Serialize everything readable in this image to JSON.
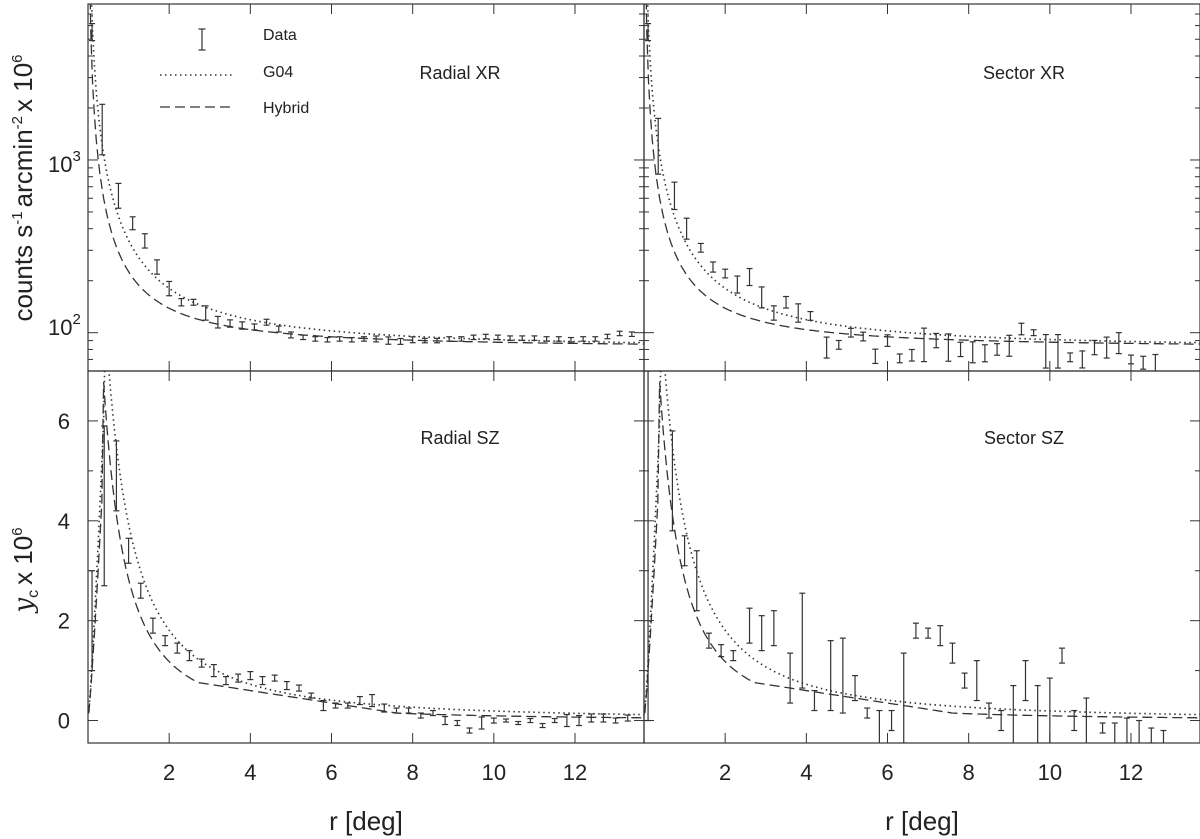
{
  "chart_data": [
    {
      "panel": "top-left",
      "type": "scatter",
      "title": "Radial XR",
      "xlabel": "",
      "ylabel": "counts s-1 arcmin-2 x 10^6",
      "xlim": [
        0,
        13.7
      ],
      "ylim": [
        60,
        8000
      ],
      "yscale": "log",
      "ytick_labels": {
        "100": "10",
        "1000": "10"
      },
      "ytick_exponents": {
        "100": "2",
        "1000": "3"
      },
      "data_points": [
        [
          0.1,
          5500,
          0.12
        ],
        [
          0.35,
          1500,
          0.4
        ],
        [
          0.75,
          620,
          0.18
        ],
        [
          1.1,
          430,
          0.09
        ],
        [
          1.4,
          340,
          0.1
        ],
        [
          1.7,
          240,
          0.1
        ],
        [
          2.0,
          180,
          0.1
        ],
        [
          2.3,
          150,
          0.05
        ],
        [
          2.6,
          150,
          0.04
        ],
        [
          2.9,
          130,
          0.1
        ],
        [
          3.2,
          115,
          0.08
        ],
        [
          3.5,
          113,
          0.05
        ],
        [
          3.8,
          110,
          0.05
        ],
        [
          4.1,
          108,
          0.04
        ],
        [
          4.4,
          115,
          0.04
        ],
        [
          4.7,
          105,
          0.04
        ],
        [
          5.0,
          97,
          0.04
        ],
        [
          5.3,
          94,
          0.03
        ],
        [
          5.6,
          92,
          0.03
        ],
        [
          5.9,
          91,
          0.03
        ],
        [
          6.2,
          92,
          0.03
        ],
        [
          6.5,
          91,
          0.03
        ],
        [
          6.8,
          92,
          0.03
        ],
        [
          7.1,
          92,
          0.04
        ],
        [
          7.4,
          90,
          0.05
        ],
        [
          7.7,
          89,
          0.04
        ],
        [
          8.0,
          91,
          0.04
        ],
        [
          8.3,
          90,
          0.03
        ],
        [
          8.6,
          90,
          0.03
        ],
        [
          8.9,
          92,
          0.03
        ],
        [
          9.2,
          92,
          0.03
        ],
        [
          9.5,
          94,
          0.03
        ],
        [
          9.8,
          95,
          0.03
        ],
        [
          10.1,
          94,
          0.03
        ],
        [
          10.4,
          93,
          0.03
        ],
        [
          10.7,
          93,
          0.03
        ],
        [
          11.0,
          93,
          0.03
        ],
        [
          11.3,
          92,
          0.03
        ],
        [
          11.6,
          92,
          0.03
        ],
        [
          11.9,
          91,
          0.03
        ],
        [
          12.2,
          92,
          0.03
        ],
        [
          12.5,
          92,
          0.03
        ],
        [
          12.8,
          95,
          0.03
        ],
        [
          13.1,
          99,
          0.03
        ],
        [
          13.4,
          98,
          0.03
        ]
      ],
      "series": [
        {
          "name": "G04",
          "style": "dotted",
          "params": {
            "base": 83,
            "amp": 600,
            "rc": 0.55,
            "p": 1.4
          }
        },
        {
          "name": "Hybrid",
          "style": "dashed",
          "params": {
            "base": 83,
            "amp": 420,
            "rc": 0.45,
            "p": 1.35
          }
        }
      ]
    },
    {
      "panel": "top-right",
      "type": "scatter",
      "title": "Sector XR",
      "xlabel": "",
      "ylabel": "",
      "xlim": [
        0,
        13.7
      ],
      "ylim": [
        60,
        8000
      ],
      "yscale": "log",
      "data_points": [
        [
          0.1,
          5500,
          0.12
        ],
        [
          0.35,
          1200,
          0.45
        ],
        [
          0.75,
          620,
          0.2
        ],
        [
          1.05,
          400,
          0.15
        ],
        [
          1.4,
          310,
          0.06
        ],
        [
          1.7,
          240,
          0.07
        ],
        [
          2.0,
          220,
          0.06
        ],
        [
          2.3,
          190,
          0.12
        ],
        [
          2.6,
          210,
          0.12
        ],
        [
          2.9,
          160,
          0.15
        ],
        [
          3.2,
          130,
          0.1
        ],
        [
          3.5,
          150,
          0.08
        ],
        [
          3.8,
          130,
          0.13
        ],
        [
          4.1,
          125,
          0.06
        ],
        [
          4.5,
          82,
          0.15
        ],
        [
          4.8,
          85,
          0.06
        ],
        [
          5.1,
          100,
          0.06
        ],
        [
          5.4,
          95,
          0.06
        ],
        [
          5.7,
          73,
          0.1
        ],
        [
          6.0,
          90,
          0.08
        ],
        [
          6.3,
          71,
          0.06
        ],
        [
          6.6,
          74,
          0.08
        ],
        [
          6.9,
          85,
          0.25
        ],
        [
          7.2,
          90,
          0.1
        ],
        [
          7.5,
          82,
          0.2
        ],
        [
          7.8,
          80,
          0.1
        ],
        [
          8.1,
          77,
          0.15
        ],
        [
          8.4,
          76,
          0.12
        ],
        [
          8.7,
          80,
          0.08
        ],
        [
          9.0,
          84,
          0.15
        ],
        [
          9.3,
          105,
          0.08
        ],
        [
          9.6,
          100,
          0.04
        ],
        [
          9.9,
          78,
          0.25
        ],
        [
          10.2,
          78,
          0.25
        ],
        [
          10.5,
          72,
          0.06
        ],
        [
          10.8,
          70,
          0.12
        ],
        [
          11.1,
          82,
          0.1
        ],
        [
          11.4,
          82,
          0.15
        ],
        [
          11.7,
          87,
          0.15
        ],
        [
          12.0,
          70,
          0.06
        ],
        [
          12.3,
          67,
          0.09
        ],
        [
          12.6,
          65,
          0.15
        ]
      ],
      "series": [
        {
          "name": "G04",
          "style": "dotted",
          "params": {
            "base": 83,
            "amp": 600,
            "rc": 0.55,
            "p": 1.4
          }
        },
        {
          "name": "Hybrid",
          "style": "dashed",
          "params": {
            "base": 83,
            "amp": 420,
            "rc": 0.45,
            "p": 1.35
          }
        }
      ]
    },
    {
      "panel": "bottom-left",
      "type": "scatter",
      "title": "Radial SZ",
      "xlabel": "r [deg]",
      "ylabel": "y_c x 10^6",
      "xlim": [
        0,
        13.7
      ],
      "ylim": [
        -0.45,
        7.0
      ],
      "yscale": "linear",
      "xticks": [
        2,
        4,
        6,
        8,
        10,
        12
      ],
      "yticks": [
        0,
        2,
        4,
        6
      ],
      "data_points": [
        [
          0.1,
          2.0,
          1.0
        ],
        [
          0.4,
          4.3,
          1.6
        ],
        [
          0.7,
          4.9,
          0.7
        ],
        [
          1.0,
          3.4,
          0.25
        ],
        [
          1.3,
          2.6,
          0.15
        ],
        [
          1.6,
          1.9,
          0.15
        ],
        [
          1.9,
          1.6,
          0.1
        ],
        [
          2.2,
          1.45,
          0.1
        ],
        [
          2.5,
          1.3,
          0.1
        ],
        [
          2.8,
          1.15,
          0.08
        ],
        [
          3.1,
          1.0,
          0.12
        ],
        [
          3.4,
          0.8,
          0.08
        ],
        [
          3.7,
          0.85,
          0.08
        ],
        [
          4.0,
          0.9,
          0.08
        ],
        [
          4.3,
          0.8,
          0.08
        ],
        [
          4.6,
          0.85,
          0.06
        ],
        [
          4.9,
          0.7,
          0.08
        ],
        [
          5.2,
          0.65,
          0.06
        ],
        [
          5.5,
          0.5,
          0.05
        ],
        [
          5.8,
          0.3,
          0.1
        ],
        [
          6.1,
          0.3,
          0.05
        ],
        [
          6.4,
          0.3,
          0.05
        ],
        [
          6.7,
          0.4,
          0.08
        ],
        [
          7.0,
          0.4,
          0.12
        ],
        [
          7.3,
          0.25,
          0.08
        ],
        [
          7.6,
          0.2,
          0.05
        ],
        [
          7.9,
          0.2,
          0.05
        ],
        [
          8.2,
          0.1,
          0.05
        ],
        [
          8.5,
          0.15,
          0.05
        ],
        [
          8.8,
          0.0,
          0.08
        ],
        [
          9.1,
          -0.05,
          0.05
        ],
        [
          9.4,
          -0.2,
          0.05
        ],
        [
          9.7,
          -0.05,
          0.12
        ],
        [
          10.0,
          0.0,
          0.05
        ],
        [
          10.3,
          0.0,
          0.03
        ],
        [
          10.6,
          -0.05,
          0.03
        ],
        [
          10.9,
          0.0,
          0.04
        ],
        [
          11.2,
          -0.1,
          0.04
        ],
        [
          11.5,
          0.0,
          0.04
        ],
        [
          11.8,
          0.0,
          0.12
        ],
        [
          12.1,
          0.0,
          0.1
        ],
        [
          12.4,
          0.05,
          0.08
        ],
        [
          12.7,
          0.05,
          0.08
        ],
        [
          13.0,
          0.0,
          0.05
        ],
        [
          13.3,
          0.05,
          0.06
        ]
      ],
      "series": [
        {
          "name": "G04",
          "style": "dotted",
          "params": {
            "a": 5.7,
            "r0": 1.0,
            "p": 1.6,
            "peak": 0.4,
            "lin": 0.125
          }
        },
        {
          "name": "Hybrid",
          "style": "dashed",
          "params": {
            "a": 4.1,
            "r0": 1.0,
            "p": 1.8,
            "peak": 0.35,
            "lin": 0.125
          }
        }
      ]
    },
    {
      "panel": "bottom-right",
      "type": "scatter",
      "title": "Sector SZ",
      "xlabel": "r [deg]",
      "ylabel": "",
      "xlim": [
        0,
        13.7
      ],
      "ylim": [
        -0.45,
        7.0
      ],
      "yscale": "linear",
      "xticks": [
        2,
        4,
        6,
        8,
        10,
        12
      ],
      "yticks": [
        0,
        2,
        4,
        6
      ],
      "data_points": [
        [
          0.1,
          3.5,
          3.5
        ],
        [
          0.7,
          4.8,
          1.0
        ],
        [
          1.0,
          3.4,
          0.3
        ],
        [
          1.3,
          2.8,
          0.6
        ],
        [
          1.6,
          1.6,
          0.15
        ],
        [
          1.9,
          1.4,
          0.12
        ],
        [
          2.2,
          1.3,
          0.1
        ],
        [
          2.6,
          1.9,
          0.35
        ],
        [
          2.9,
          1.75,
          0.35
        ],
        [
          3.2,
          1.85,
          0.35
        ],
        [
          3.6,
          0.85,
          0.5
        ],
        [
          3.9,
          1.6,
          0.95
        ],
        [
          4.2,
          0.4,
          0.2
        ],
        [
          4.6,
          0.9,
          0.7
        ],
        [
          4.9,
          0.9,
          0.75
        ],
        [
          5.2,
          0.65,
          0.25
        ],
        [
          5.5,
          0.15,
          0.1
        ],
        [
          5.8,
          -0.15,
          0.35
        ],
        [
          6.1,
          0.0,
          0.2
        ],
        [
          6.4,
          0.45,
          0.9
        ],
        [
          6.7,
          1.8,
          0.15
        ],
        [
          7.0,
          1.75,
          0.1
        ],
        [
          7.3,
          1.7,
          0.2
        ],
        [
          7.6,
          1.35,
          0.2
        ],
        [
          7.9,
          0.8,
          0.15
        ],
        [
          8.2,
          0.8,
          0.4
        ],
        [
          8.5,
          0.2,
          0.15
        ],
        [
          8.8,
          0.0,
          0.2
        ],
        [
          9.1,
          -0.2,
          0.9
        ],
        [
          9.4,
          0.8,
          0.4
        ],
        [
          9.7,
          0.0,
          0.7
        ],
        [
          10.0,
          0.0,
          0.85
        ],
        [
          10.3,
          1.3,
          0.15
        ],
        [
          10.6,
          0.0,
          0.2
        ],
        [
          10.9,
          -0.15,
          0.6
        ],
        [
          11.3,
          -0.15,
          0.1
        ],
        [
          11.6,
          -0.3,
          0.25
        ],
        [
          11.9,
          -0.2,
          0.25
        ],
        [
          12.2,
          -0.4,
          0.4
        ],
        [
          12.5,
          -0.3,
          0.15
        ],
        [
          12.8,
          -0.35,
          0.15
        ]
      ],
      "series": [
        {
          "name": "G04",
          "style": "dotted",
          "params": {
            "a": 5.7,
            "r0": 1.0,
            "p": 1.6,
            "peak": 0.4,
            "lin": 0.125
          }
        },
        {
          "name": "Hybrid",
          "style": "dashed",
          "params": {
            "a": 4.1,
            "r0": 1.0,
            "p": 1.8,
            "peak": 0.35,
            "lin": 0.125
          }
        }
      ]
    }
  ],
  "legend": {
    "placement": "top-left",
    "entries": [
      {
        "label": "Data",
        "style": "errorbar"
      },
      {
        "label": "G04",
        "style": "dotted"
      },
      {
        "label": "Hybrid",
        "style": "dashed"
      }
    ]
  },
  "labels": {
    "top_ylabel": "counts s",
    "top_ylabel_sup1": "-1",
    "top_ylabel_mid": "arcmin",
    "top_ylabel_sup2": "-2",
    "top_ylabel_mult": "x 10",
    "top_ylabel_sup3": "6",
    "bottom_ylabel_y": "y",
    "bottom_ylabel_sub": "c",
    "bottom_ylabel_mult": "x 10",
    "bottom_ylabel_sup": "6",
    "xlabel_left": "r [deg]",
    "xlabel_right": "r [deg]"
  }
}
